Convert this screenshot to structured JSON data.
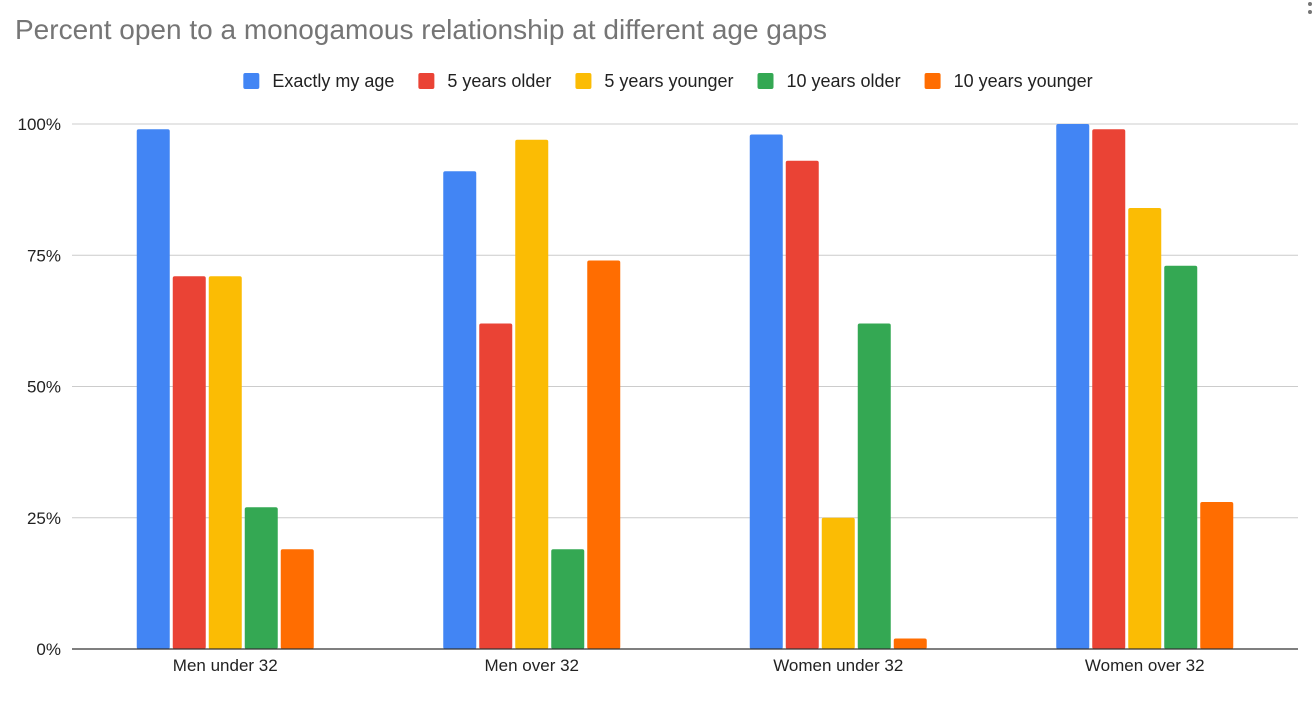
{
  "chart_data": {
    "type": "bar",
    "title": "Percent open to a monogamous relationship at different age gaps",
    "categories": [
      "Men under 32",
      "Men over 32",
      "Women under 32",
      "Women over 32"
    ],
    "series": [
      {
        "name": "Exactly my age",
        "color": "#4285f4",
        "values": [
          99,
          91,
          98,
          100
        ]
      },
      {
        "name": "5 years older",
        "color": "#ea4335",
        "values": [
          71,
          62,
          93,
          99
        ]
      },
      {
        "name": "5 years younger",
        "color": "#fbbc04",
        "values": [
          71,
          97,
          25,
          84
        ]
      },
      {
        "name": "10 years older",
        "color": "#34a853",
        "values": [
          27,
          19,
          62,
          73
        ]
      },
      {
        "name": "10 years younger",
        "color": "#ff6d01",
        "values": [
          19,
          74,
          2,
          28
        ]
      }
    ],
    "ylim": [
      0,
      100
    ],
    "yticks": [
      {
        "value": 0,
        "label": "0%"
      },
      {
        "value": 25,
        "label": "25%"
      },
      {
        "value": 50,
        "label": "50%"
      },
      {
        "value": 75,
        "label": "75%"
      },
      {
        "value": 100,
        "label": "100%"
      }
    ],
    "xlabel": "",
    "ylabel": "",
    "legend_position": "top-center",
    "grid": true
  }
}
